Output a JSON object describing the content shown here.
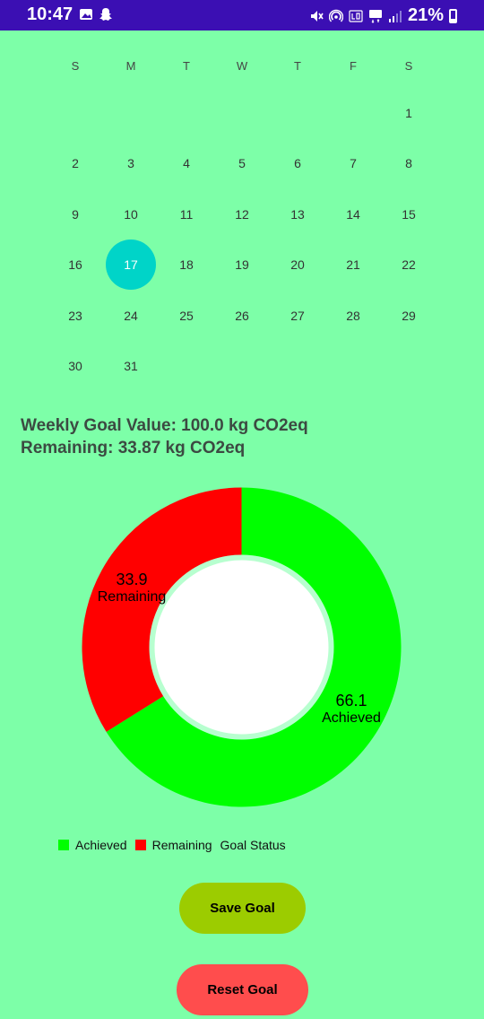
{
  "status_bar": {
    "time": "10:47",
    "battery_text": "21%",
    "left_icons": [
      "image-icon",
      "snapchat-icon"
    ],
    "right_icons": [
      "mute-icon",
      "hotspot-icon",
      "volte-icon",
      "5g-icon",
      "signal-icon",
      "battery-icon"
    ]
  },
  "calendar": {
    "weekdays": [
      "S",
      "M",
      "T",
      "W",
      "T",
      "F",
      "S"
    ],
    "first_day_column": 6,
    "days_in_month": 31,
    "selected_day": "17",
    "selected_color": "#00d4c8"
  },
  "goal": {
    "weekly_line": "Weekly Goal Value: 100.0 kg CO2eq",
    "remaining_line": "Remaining: 33.87 kg CO2eq"
  },
  "chart_data": {
    "type": "pie",
    "title": "Goal Status",
    "style": "donut",
    "slices": [
      {
        "label": "Achieved",
        "value": 66.1,
        "color": "#00ff00"
      },
      {
        "label": "Remaining",
        "value": 33.9,
        "color": "#ff0000"
      }
    ],
    "legend_placement": "bottom-left"
  },
  "legend": {
    "achieved": "Achieved",
    "remaining": "Remaining",
    "title": "Goal Status"
  },
  "buttons": {
    "save": "Save Goal",
    "reset": "Reset Goal"
  }
}
